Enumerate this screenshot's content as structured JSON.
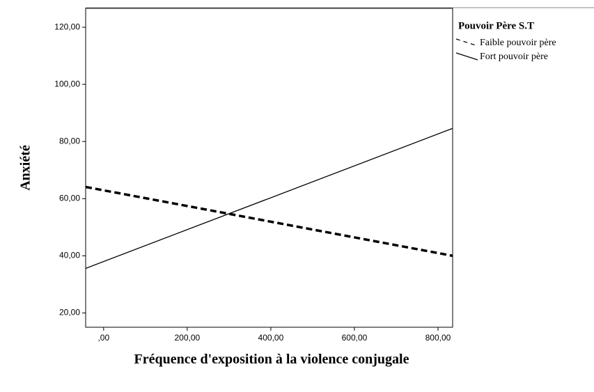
{
  "chart_data": {
    "type": "line",
    "x_label": "Fréquence d'exposition à la violence conjugale",
    "y_label": "Anxiété",
    "legend_title": "Pouvoir Père S.T",
    "legend": "right",
    "x": [
      -43,
      835
    ],
    "series": [
      {
        "name": "Faible pouvoir père",
        "color": "#000000",
        "dashed": true,
        "values": [
          64.1,
          40
        ]
      },
      {
        "name": "Fort pouvoir père",
        "color": "#000000",
        "dashed": false,
        "values": [
          35.6,
          84.6
        ]
      }
    ],
    "xlim": [
      -43,
      835
    ],
    "xticks": [
      {
        "value": 0,
        "label": ",00"
      },
      {
        "value": 200,
        "label": "200,00"
      },
      {
        "value": 400,
        "label": "400,00"
      },
      {
        "value": 600,
        "label": "600,00"
      },
      {
        "value": 800,
        "label": "800,00"
      }
    ],
    "ylim": [
      15,
      126.6
    ],
    "yticks": [
      {
        "value": 20,
        "label": "20,00"
      },
      {
        "value": 40,
        "label": "40,00"
      },
      {
        "value": 60,
        "label": "60,00"
      },
      {
        "value": 80,
        "label": "80,00"
      },
      {
        "value": 100,
        "label": "100,00"
      },
      {
        "value": 120,
        "label": "120,00"
      }
    ]
  }
}
